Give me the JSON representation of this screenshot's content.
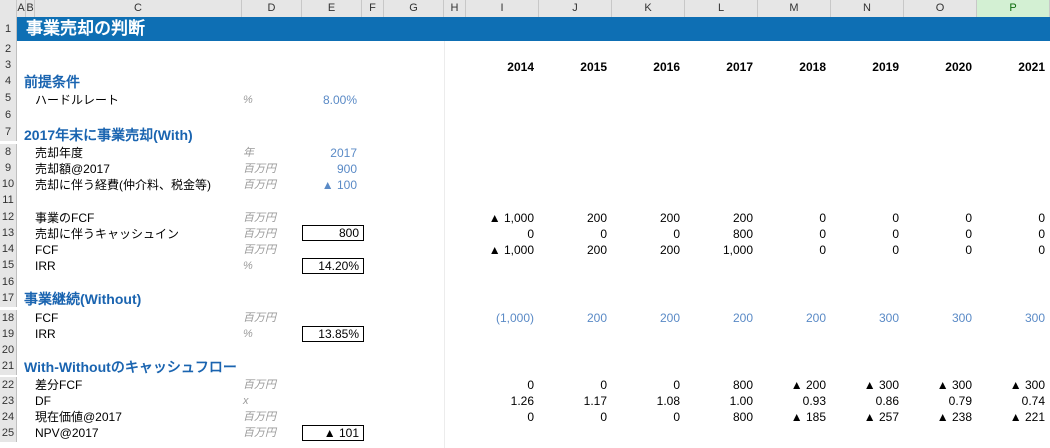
{
  "col_headers": [
    "A",
    "B",
    "C",
    "D",
    "E",
    "F",
    "G",
    "H",
    "I",
    "J",
    "K",
    "L",
    "M",
    "N",
    "O",
    "P"
  ],
  "row_numbers": [
    "1",
    "2",
    "3",
    "4",
    "5",
    "6",
    "7",
    "8",
    "9",
    "10",
    "11",
    "12",
    "13",
    "14",
    "15",
    "16",
    "17",
    "18",
    "19",
    "20",
    "21",
    "22",
    "23",
    "24",
    "25"
  ],
  "title": "事業売却の判断",
  "years": [
    "2014",
    "2015",
    "2016",
    "2017",
    "2018",
    "2019",
    "2020",
    "2021"
  ],
  "premise": {
    "heading": "前提条件",
    "hurdle_label": "ハードルレート",
    "hurdle_unit": "%",
    "hurdle_value": "8.00%"
  },
  "with": {
    "heading": "2017年末に事業売却(With)",
    "sale_year_label": "売却年度",
    "sale_year_unit": "年",
    "sale_year_value": "2017",
    "sale_amount_label": "売却額@2017",
    "sale_amount_unit": "百万円",
    "sale_amount_value": "900",
    "sale_cost_label": "売却に伴う経費(仲介料、税金等)",
    "sale_cost_unit": "百万円",
    "sale_cost_value": "▲ 100",
    "fcf_business_label": "事業のFCF",
    "fcf_business_unit": "百万円",
    "fcf_business": [
      "▲ 1,000",
      "200",
      "200",
      "200",
      "0",
      "0",
      "0",
      "0"
    ],
    "cash_in_label": "売却に伴うキャッシュイン",
    "cash_in_unit": "百万円",
    "cash_in_total": "800",
    "cash_in": [
      "0",
      "0",
      "0",
      "800",
      "0",
      "0",
      "0",
      "0"
    ],
    "fcf_label": "FCF",
    "fcf_unit": "百万円",
    "fcf": [
      "▲ 1,000",
      "200",
      "200",
      "1,000",
      "0",
      "0",
      "0",
      "0"
    ],
    "irr_label": "IRR",
    "irr_unit": "%",
    "irr_value": "14.20%"
  },
  "without": {
    "heading": "事業継続(Without)",
    "fcf_label": "FCF",
    "fcf_unit": "百万円",
    "fcf": [
      "(1,000)",
      "200",
      "200",
      "200",
      "200",
      "300",
      "300",
      "300"
    ],
    "irr_label": "IRR",
    "irr_unit": "%",
    "irr_value": "13.85%"
  },
  "diff": {
    "heading": "With-Withoutのキャッシュフロー",
    "diff_fcf_label": "差分FCF",
    "diff_fcf_unit": "百万円",
    "diff_fcf": [
      "0",
      "0",
      "0",
      "800",
      "▲ 200",
      "▲ 300",
      "▲ 300",
      "▲ 300"
    ],
    "df_label": "DF",
    "df_unit": "x",
    "df": [
      "1.26",
      "1.17",
      "1.08",
      "1.00",
      "0.93",
      "0.86",
      "0.79",
      "0.74"
    ],
    "pv_label": "現在価値@2017",
    "pv_unit": "百万円",
    "pv": [
      "0",
      "0",
      "0",
      "800",
      "▲ 185",
      "▲ 257",
      "▲ 238",
      "▲ 221"
    ],
    "npv_label": "NPV@2017",
    "npv_unit": "百万円",
    "npv_value": "▲ 101"
  }
}
